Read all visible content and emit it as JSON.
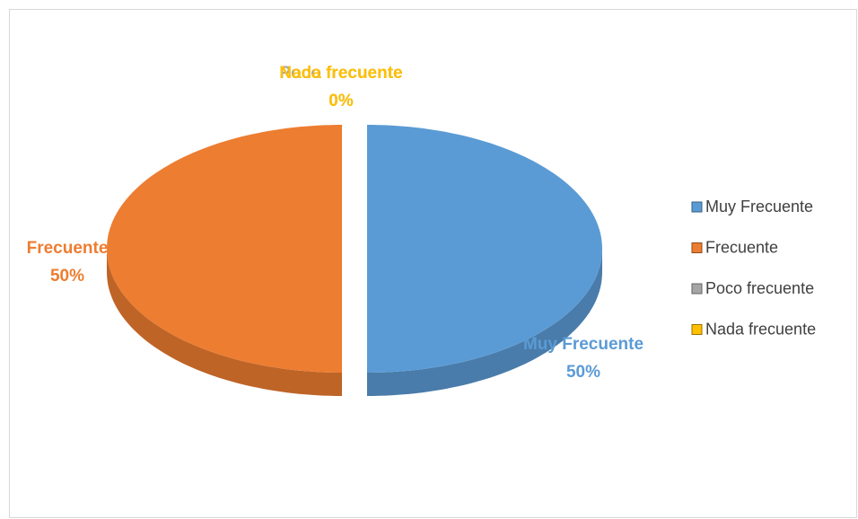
{
  "chart_data": {
    "type": "pie",
    "categories": [
      "Muy Frecuente",
      "Frecuente",
      "Poco frecuente",
      "Nada frecuente"
    ],
    "values": [
      50,
      50,
      0,
      0
    ],
    "value_labels": [
      "50%",
      "50%",
      "0%",
      "0%"
    ],
    "colors": [
      "#5b9bd5",
      "#ed7d31",
      "#a5a5a5",
      "#ffc000"
    ],
    "legend": "right"
  }
}
